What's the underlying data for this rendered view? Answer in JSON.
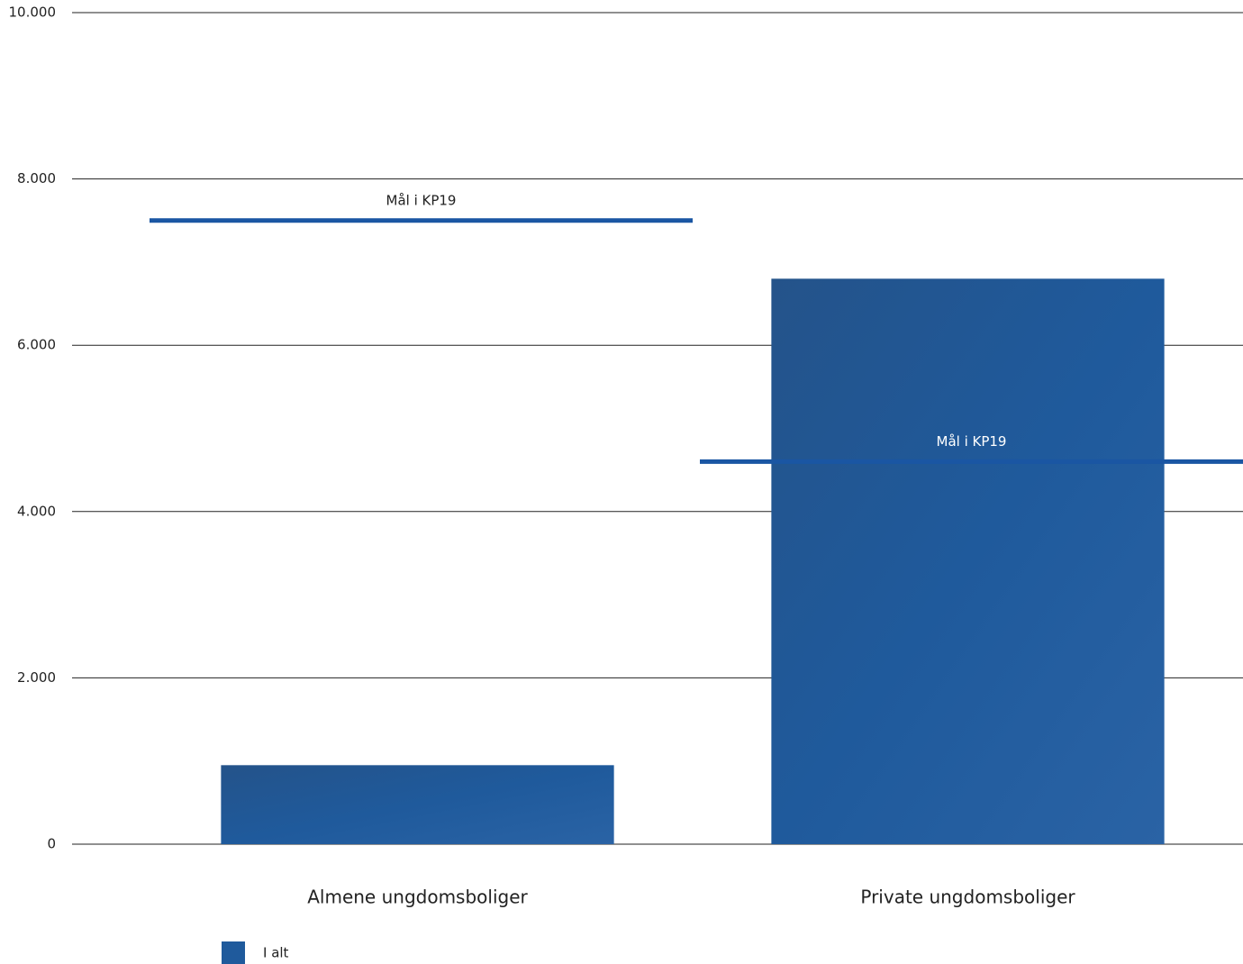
{
  "chart_data": {
    "type": "bar",
    "categories": [
      "Almene ungdomsboliger",
      "Private ungdomsboliger"
    ],
    "series": [
      {
        "name": "I alt",
        "color": "#1f5a9c",
        "values": [
          950,
          6800
        ]
      }
    ],
    "targets": {
      "name": "Mål i KP19",
      "color": "#1a56a3",
      "values": [
        7500,
        4600
      ]
    },
    "ylim": [
      0,
      10000
    ],
    "yticks": [
      0,
      {
        "value": 2000,
        "label": "2.000"
      },
      {
        "value": 4000,
        "label": "4.000"
      },
      {
        "value": 6000,
        "label": "6.000"
      },
      {
        "value": 8000,
        "label": "8.000"
      },
      {
        "value": 10000,
        "label": "10.000"
      }
    ],
    "grid": true
  }
}
